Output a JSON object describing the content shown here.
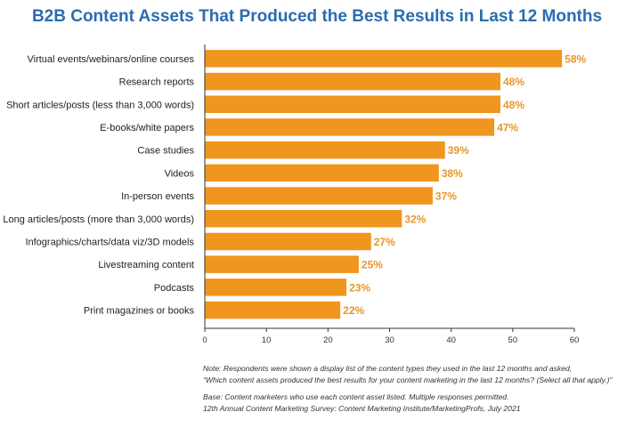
{
  "title": "B2B Content Assets That Produced the Best Results in Last 12 Months",
  "chart_data": {
    "type": "bar",
    "orientation": "horizontal",
    "categories": [
      "Virtual events/webinars/online courses",
      "Research reports",
      "Short articles/posts (less than 3,000 words)",
      "E-books/white papers",
      "Case studies",
      "Videos",
      "In-person events",
      "Long articles/posts (more than 3,000 words)",
      "Infographics/charts/data viz/3D models",
      "Livestreaming content",
      "Podcasts",
      "Print magazines or books"
    ],
    "values": [
      58,
      48,
      48,
      47,
      39,
      38,
      37,
      32,
      27,
      25,
      23,
      22
    ],
    "value_labels": [
      "58%",
      "48%",
      "48%",
      "47%",
      "39%",
      "38%",
      "37%",
      "32%",
      "27%",
      "25%",
      "23%",
      "22%"
    ],
    "xlim": [
      0,
      60
    ],
    "xticks": [
      "0",
      "10",
      "20",
      "30",
      "40",
      "50",
      "60"
    ],
    "bar_color": "#f0961f",
    "label_color": "#e8962a",
    "title_color": "#2b6cb0",
    "grid": false
  },
  "notes": {
    "line1": "Note: Respondents were shown a display list of the content types they used in the last 12 months and asked,",
    "line2": "“Which content assets produced the best results for your content marketing in the last 12 months? (Select all that apply.)”",
    "base": "Base: Content marketers who use each content asset listed. Multiple responses permitted.",
    "source": "12th Annual Content Marketing Survey: Content Marketing Institute/MarketingProfs, July 2021"
  }
}
